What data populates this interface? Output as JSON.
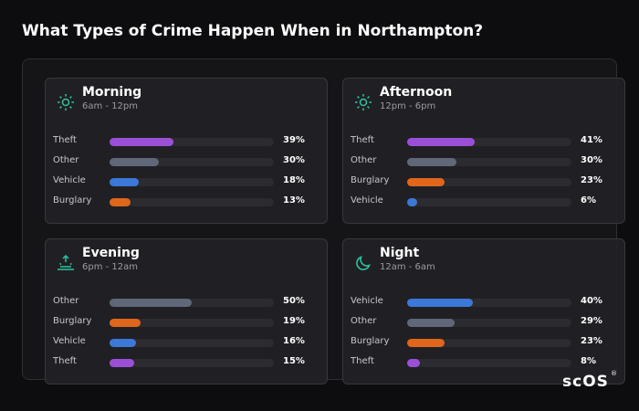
{
  "title": "What Types of Crime Happen When in Northampton?",
  "logo": "scOS",
  "chart_data": [
    {
      "type": "bar",
      "title": "Morning",
      "subtitle": "6am - 12pm",
      "categories": [
        "Theft",
        "Other",
        "Vehicle",
        "Burglary"
      ],
      "values": [
        39,
        30,
        18,
        13
      ],
      "value_labels": [
        "39%",
        "30%",
        "18%",
        "13%"
      ],
      "colors": [
        "#9b4fd6",
        "#5f6778",
        "#3b78d8",
        "#e0661c"
      ],
      "xlim": [
        0,
        100
      ]
    },
    {
      "type": "bar",
      "title": "Afternoon",
      "subtitle": "12pm - 6pm",
      "categories": [
        "Theft",
        "Other",
        "Burglary",
        "Vehicle"
      ],
      "values": [
        41,
        30,
        23,
        6
      ],
      "value_labels": [
        "41%",
        "30%",
        "23%",
        "6%"
      ],
      "colors": [
        "#9b4fd6",
        "#5f6778",
        "#e0661c",
        "#3b78d8"
      ],
      "xlim": [
        0,
        100
      ]
    },
    {
      "type": "bar",
      "title": "Evening",
      "subtitle": "6pm - 12am",
      "categories": [
        "Other",
        "Burglary",
        "Vehicle",
        "Theft"
      ],
      "values": [
        50,
        19,
        16,
        15
      ],
      "value_labels": [
        "50%",
        "19%",
        "16%",
        "15%"
      ],
      "colors": [
        "#5f6778",
        "#e0661c",
        "#3b78d8",
        "#9b4fd6"
      ],
      "xlim": [
        0,
        100
      ]
    },
    {
      "type": "bar",
      "title": "Night",
      "subtitle": "12am - 6am",
      "categories": [
        "Vehicle",
        "Other",
        "Burglary",
        "Theft"
      ],
      "values": [
        40,
        29,
        23,
        8
      ],
      "value_labels": [
        "40%",
        "29%",
        "23%",
        "8%"
      ],
      "colors": [
        "#3b78d8",
        "#5f6778",
        "#e0661c",
        "#9b4fd6"
      ],
      "xlim": [
        0,
        100
      ]
    }
  ]
}
